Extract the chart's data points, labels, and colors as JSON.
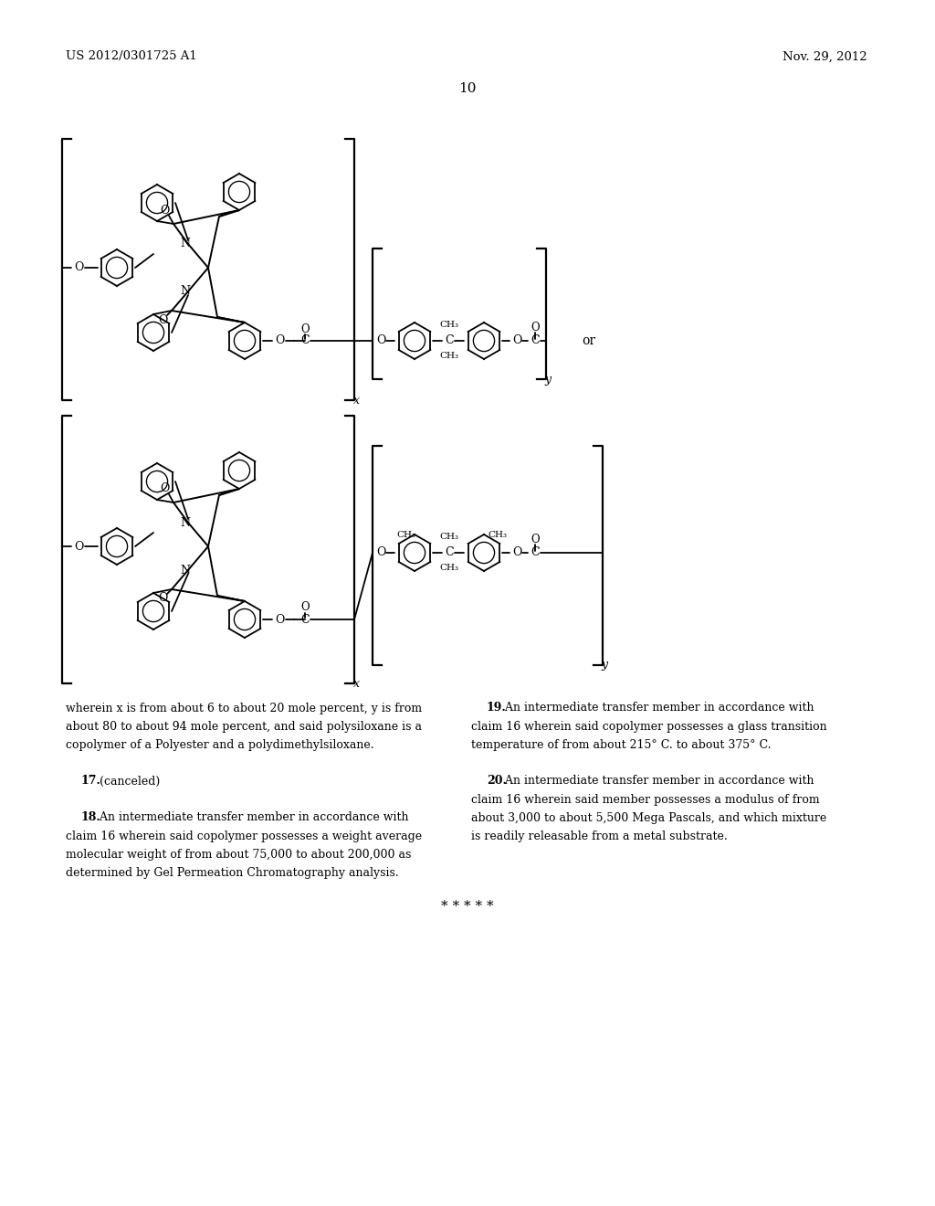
{
  "bg_color": "#ffffff",
  "header_left": "US 2012/0301725 A1",
  "header_right": "Nov. 29, 2012",
  "page_number": "10",
  "body_text_left_lines": [
    "wherein x is from about 6 to about 20 mole percent, y is from",
    "about 80 to about 94 mole percent, and said polysiloxane is a",
    "copolymer of a Polyester and a polydimethylsiloxane.",
    "",
    "    17. (canceled)",
    "",
    "    18. An intermediate transfer member in accordance with",
    "claim 16 wherein said copolymer possesses a weight average",
    "molecular weight of from about 75,000 to about 200,000 as",
    "determined by Gel Permeation Chromatography analysis."
  ],
  "body_text_right_lines": [
    "    19. An intermediate transfer member in accordance with",
    "claim 16 wherein said copolymer possesses a glass transition",
    "temperature of from about 215° C. to about 375° C.",
    "",
    "    20. An intermediate transfer member in accordance with",
    "claim 16 wherein said member possesses a modulus of from",
    "about 3,000 to about 5,500 Mega Pascals, and which mixture",
    "is readily releasable from a metal substrate."
  ],
  "asterisks": "* * * * *"
}
